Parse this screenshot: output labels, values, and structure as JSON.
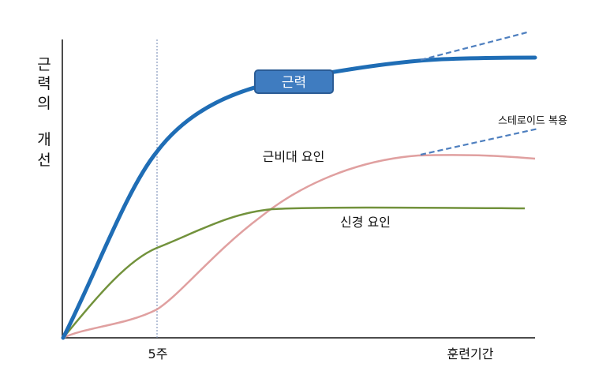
{
  "diagram": {
    "y_axis_label_lines": [
      "근력의",
      "개선"
    ],
    "x_tick_label": "5주",
    "x_axis_end_label": "훈련기간",
    "strength_badge": "근력",
    "hypertrophy_label": "근비대 요인",
    "neural_label": "신경 요인",
    "steroid_label": "스테로이드 복용",
    "colors": {
      "strength": "#1f6db5",
      "badge_fill": "#3f7cc0",
      "badge_border": "#2b5c95",
      "hypertrophy": "#e0a0a0",
      "neural": "#72923c",
      "dashed": "#4e7fbf",
      "axis": "#111111",
      "marker": "#6f86b0"
    }
  }
}
